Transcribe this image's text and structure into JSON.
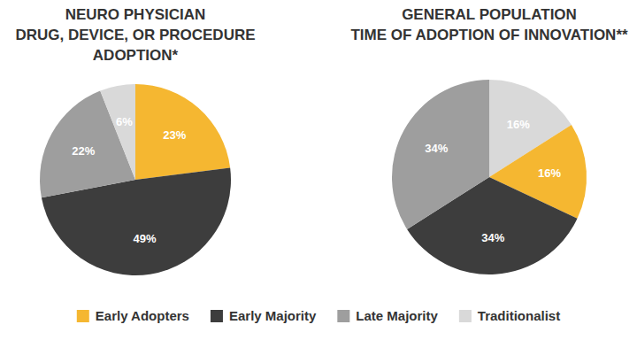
{
  "chart_data": [
    {
      "type": "pie",
      "title": "NEURO PHYSICIAN\nDRUG, DEVICE, OR PROCEDURE\nADOPTION*",
      "categories": [
        "Early Adopters",
        "Early Majority",
        "Late Majority",
        "Traditionalist"
      ],
      "values": [
        23,
        49,
        22,
        6
      ],
      "value_labels": [
        "23%",
        "49%",
        "22%",
        "6%"
      ],
      "data_labels": true,
      "colors": [
        "#f5b731",
        "#3d3d3d",
        "#9e9e9e",
        "#d9d9d9"
      ],
      "legend": "bottom"
    },
    {
      "type": "pie",
      "title": "GENERAL POPULATION\nTIME OF ADOPTION OF INNOVATION**",
      "categories": [
        "Traditionalist",
        "Early Adopters",
        "Early Majority",
        "Late Majority"
      ],
      "values": [
        16,
        16,
        34,
        34
      ],
      "value_labels": [
        "16%",
        "16%",
        "34%",
        "34%"
      ],
      "data_labels": true,
      "colors": [
        "#d9d9d9",
        "#f5b731",
        "#3d3d3d",
        "#9e9e9e"
      ]
    }
  ]
}
